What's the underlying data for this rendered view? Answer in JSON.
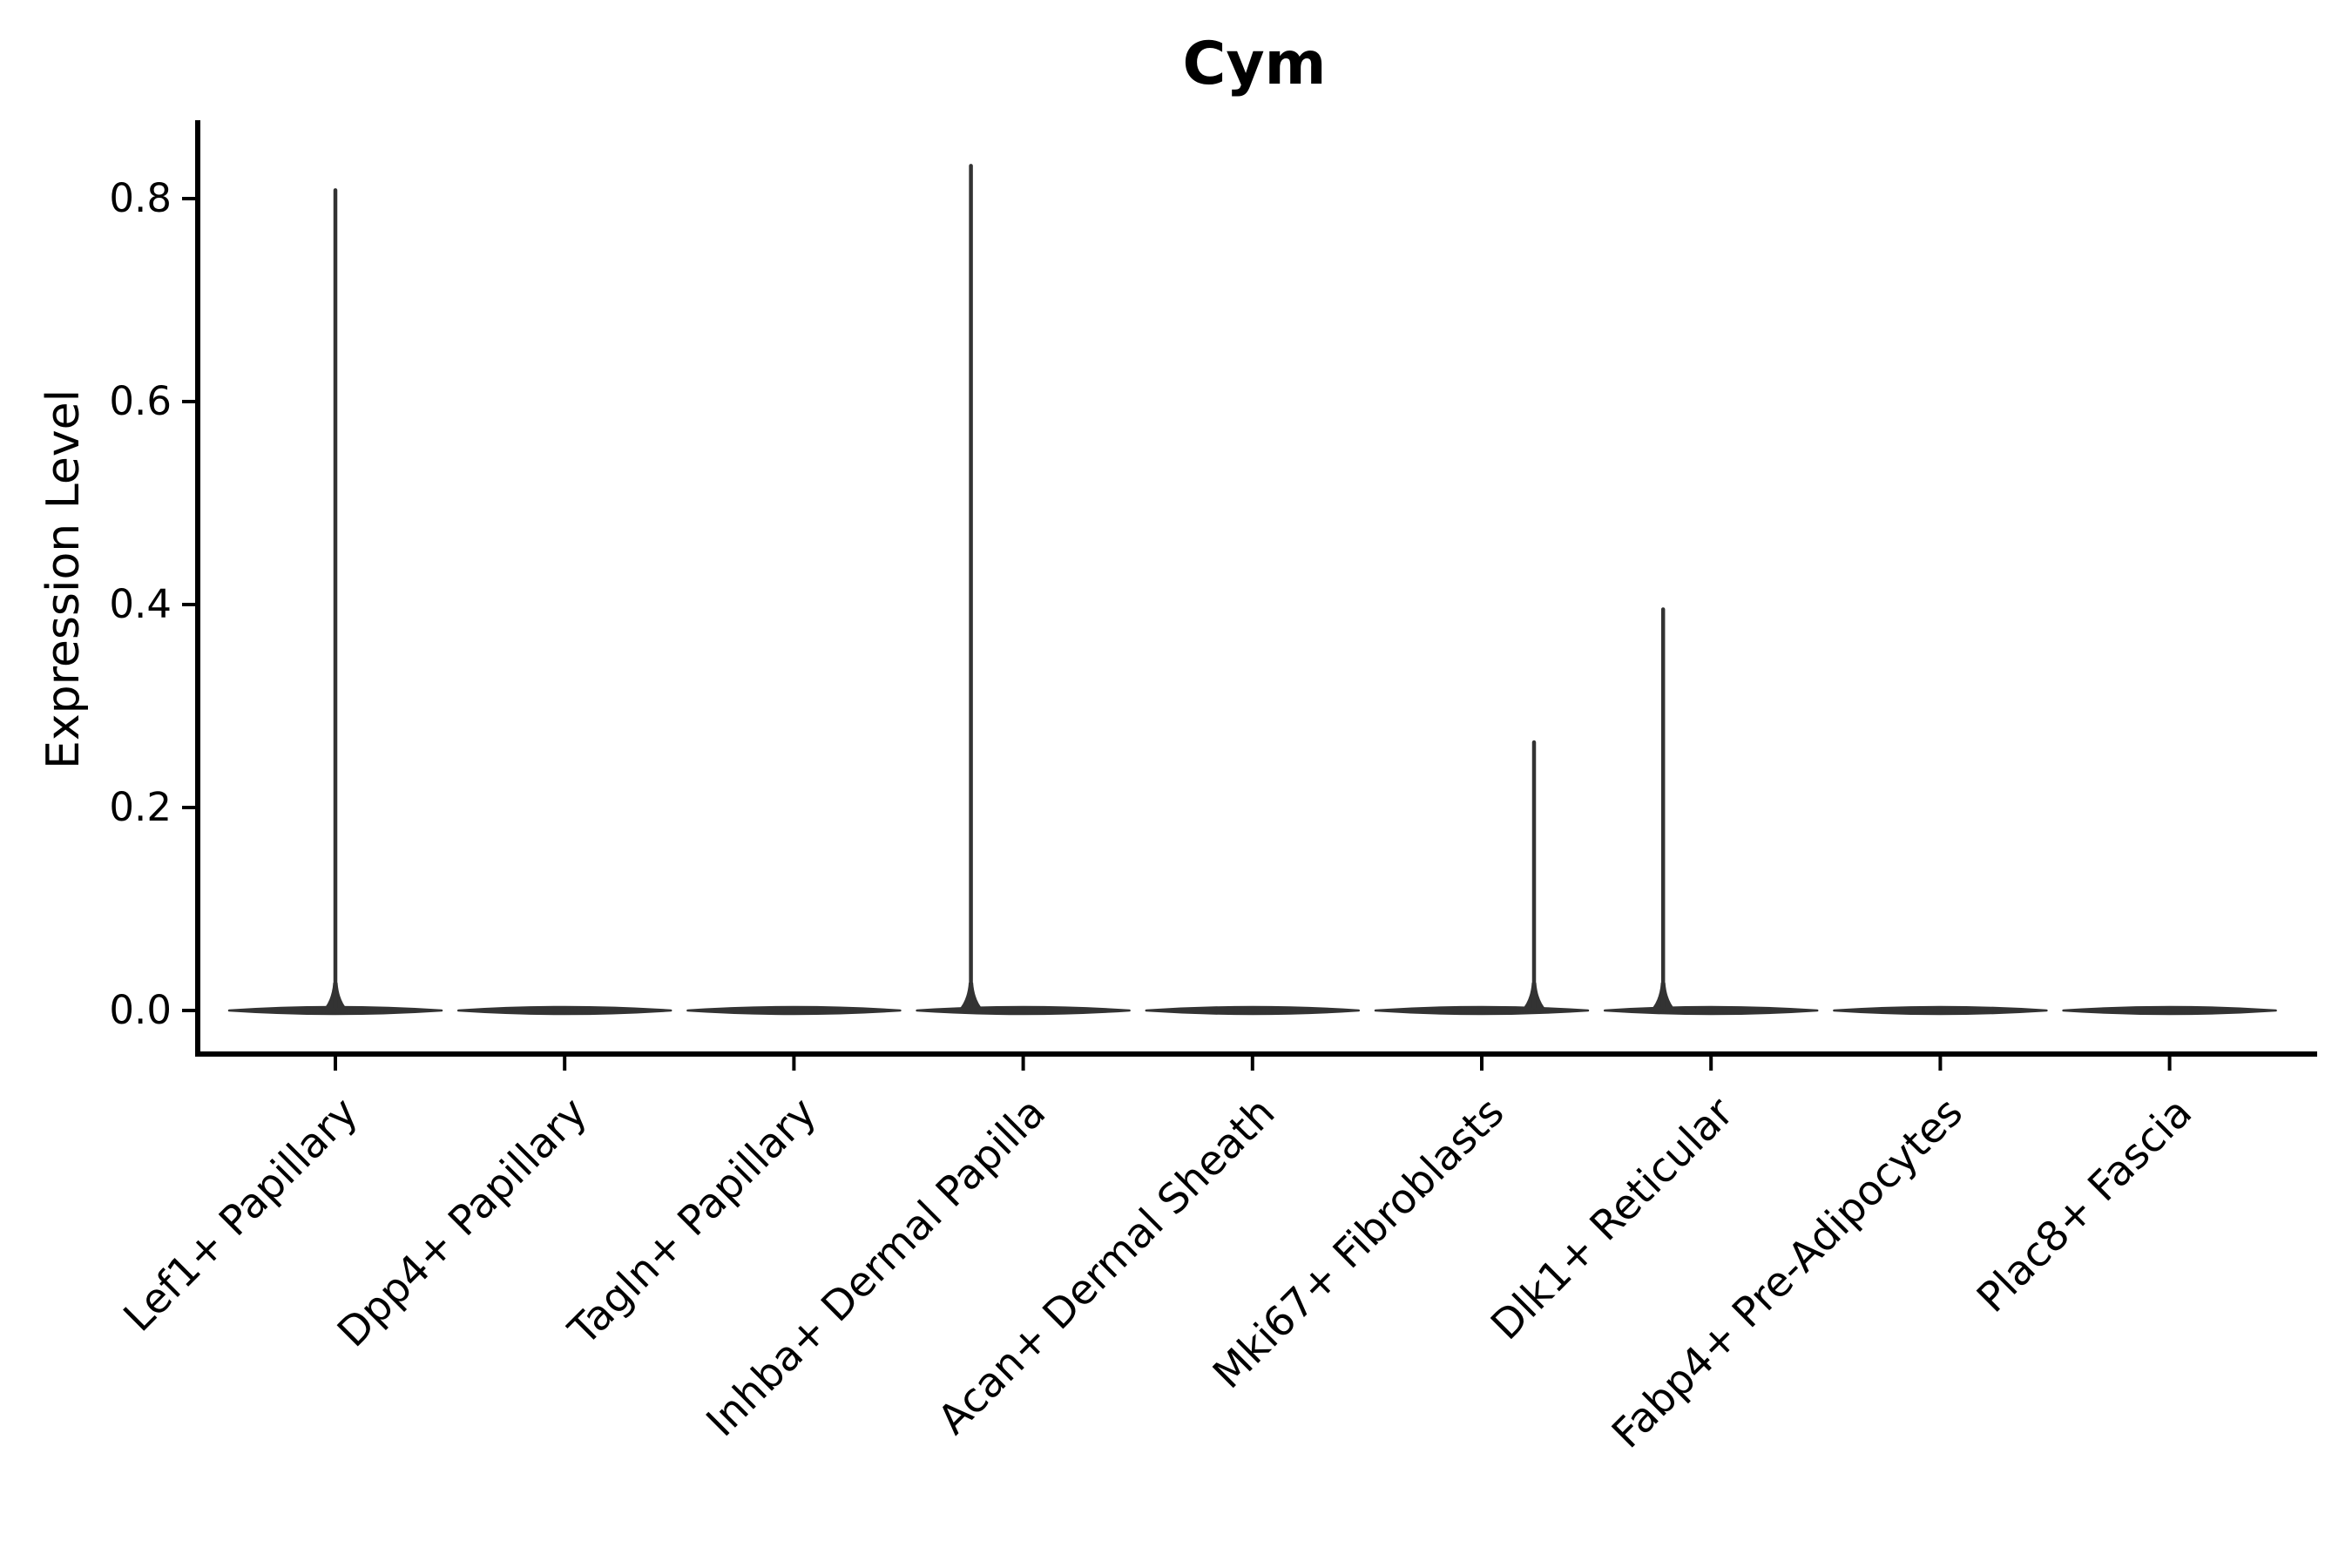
{
  "figure": {
    "title": "Cym",
    "ylabel": "Expression Level"
  },
  "chart_data": {
    "type": "violin",
    "title": "Cym",
    "xlabel": "",
    "ylabel": "Expression Level",
    "grid": false,
    "legend": "none",
    "ylim": [
      -0.043,
      0.877
    ],
    "ytick_labels": [
      "0.0",
      "0.2",
      "0.4",
      "0.6",
      "0.8"
    ],
    "ytick_values": [
      0.0,
      0.2,
      0.4,
      0.6,
      0.8
    ],
    "categories": [
      "Lef1+ Papillary",
      "Dpp4+ Papillary",
      "Tagln+ Papillary",
      "Inhba+ Dermal Papilla",
      "Acan+ Dermal Sheath",
      "Mki67+ Fibroblasts",
      "Dlk1+ Reticular",
      "Fabp4+ Pre-Adipocytes",
      "Plac8+ Fascia"
    ],
    "violins": [
      {
        "category": "Lef1+ Papillary",
        "baseline_value": 0.0,
        "max_value": 0.81,
        "has_spike": true,
        "spike_value": 0.81,
        "spike_offset_frac": 0.0
      },
      {
        "category": "Dpp4+ Papillary",
        "baseline_value": 0.0,
        "max_value": 0.0,
        "has_spike": false,
        "spike_value": null,
        "spike_offset_frac": 0.0
      },
      {
        "category": "Tagln+ Papillary",
        "baseline_value": 0.0,
        "max_value": 0.0,
        "has_spike": false,
        "spike_value": null,
        "spike_offset_frac": 0.0
      },
      {
        "category": "Inhba+ Dermal Papilla",
        "baseline_value": 0.0,
        "max_value": 0.834,
        "has_spike": true,
        "spike_value": 0.834,
        "spike_offset_frac": -0.228
      },
      {
        "category": "Acan+ Dermal Sheath",
        "baseline_value": 0.0,
        "max_value": 0.0,
        "has_spike": false,
        "spike_value": null,
        "spike_offset_frac": 0.0
      },
      {
        "category": "Mki67+ Fibroblasts",
        "baseline_value": 0.0,
        "max_value": 0.266,
        "has_spike": true,
        "spike_value": 0.266,
        "spike_offset_frac": 0.228
      },
      {
        "category": "Dlk1+ Reticular",
        "baseline_value": 0.0,
        "max_value": 0.397,
        "has_spike": true,
        "spike_value": 0.397,
        "spike_offset_frac": -0.209
      },
      {
        "category": "Fabp4+ Pre-Adipocytes",
        "baseline_value": 0.0,
        "max_value": 0.0,
        "has_spike": false,
        "spike_value": null,
        "spike_offset_frac": 0.0
      },
      {
        "category": "Plac8+ Fascia",
        "baseline_value": 0.0,
        "max_value": 0.0,
        "has_spike": false,
        "spike_value": null,
        "spike_offset_frac": 0.0
      }
    ],
    "colors": {
      "violin": "#333333",
      "axis": "#000000",
      "text": "#000000",
      "background": "#ffffff"
    }
  }
}
